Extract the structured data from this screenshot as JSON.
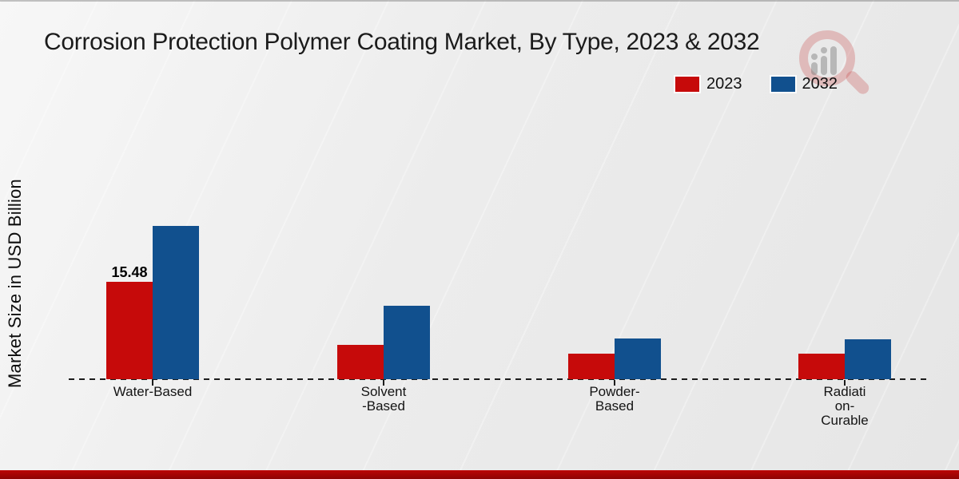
{
  "title": "Corrosion Protection Polymer Coating Market, By Type, 2023 & 2032",
  "y_axis_label": "Market Size in USD Billion",
  "legend": {
    "items": [
      {
        "label": "2023",
        "color": "#c60a0a"
      },
      {
        "label": "2032",
        "color": "#11508e"
      }
    ]
  },
  "watermark": {
    "name": "magnifier-bar-chart-logo"
  },
  "footer": {
    "accent_top": "#bb0606",
    "accent_bottom": "#8e0303"
  },
  "chart_data": {
    "type": "bar",
    "title": "Corrosion Protection Polymer Coating Market, By Type, 2023 & 2032",
    "categories": [
      "Water-Based",
      "Solvent-Based",
      "Powder-Based",
      "Radiation-Curable"
    ],
    "category_label_lines": [
      [
        "Water-Based"
      ],
      [
        "Solvent",
        "-Based"
      ],
      [
        "Powder-",
        "Based"
      ],
      [
        "Radiati",
        "on-",
        "Curable"
      ]
    ],
    "series": [
      {
        "name": "2023",
        "color": "#c60a0a",
        "values": [
          15.48,
          5.46,
          4.06,
          4.06
        ]
      },
      {
        "name": "2032",
        "color": "#11508e",
        "values": [
          24.36,
          11.67,
          6.47,
          6.34
        ]
      }
    ],
    "value_labels": [
      [
        "15.48",
        null,
        null,
        null
      ],
      [
        null,
        null,
        null,
        null
      ]
    ],
    "xlabel": "",
    "ylabel": "Market Size in USD Billion",
    "ylim": [
      0,
      26
    ],
    "grid": false,
    "baseline_style": "dashed",
    "legend_position": "top-right"
  }
}
